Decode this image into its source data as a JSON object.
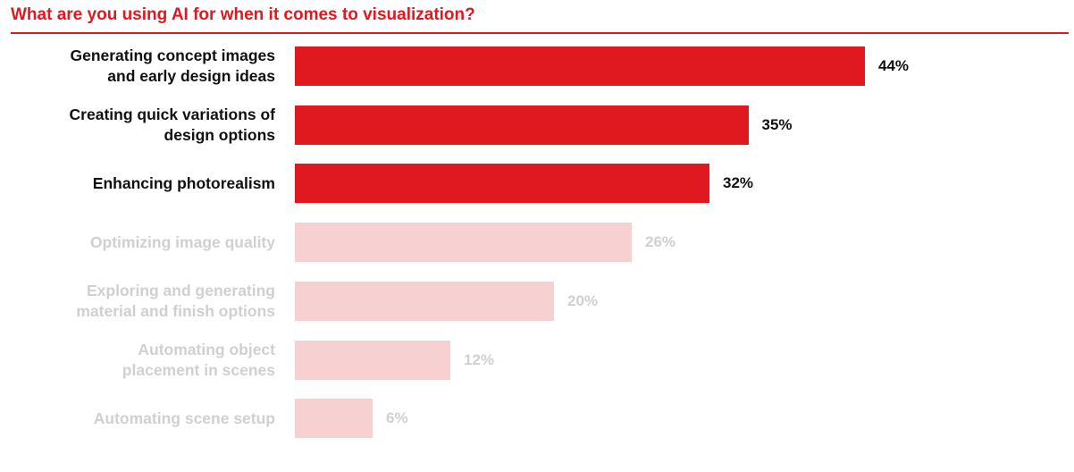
{
  "title": "What are you using AI for when it comes to visualization?",
  "colors": {
    "accent": "#e0181f",
    "bar_highlight": "#e0181f",
    "bar_muted": "#f7d0d1",
    "label_highlight": "#111111",
    "label_muted": "#d0d0d0"
  },
  "chart_data": {
    "type": "bar",
    "orientation": "horizontal",
    "title": "What are you using AI for when it comes to visualization?",
    "categories": [
      [
        "Generating concept images",
        "and early design ideas"
      ],
      [
        "Creating quick variations of",
        "design options"
      ],
      [
        "Enhancing photorealism"
      ],
      [
        "Optimizing image quality"
      ],
      [
        "Exploring and generating",
        "material and finish options"
      ],
      [
        "Automating object",
        "placement in scenes"
      ],
      [
        "Automating scene setup"
      ]
    ],
    "values": [
      44,
      35,
      32,
      26,
      20,
      12,
      6
    ],
    "value_labels": [
      "44%",
      "35%",
      "32%",
      "26%",
      "20%",
      "12%",
      "6%"
    ],
    "highlighted": [
      true,
      true,
      true,
      false,
      false,
      false,
      false
    ],
    "xlim": [
      0,
      50
    ],
    "grid": false,
    "legend": "none"
  }
}
